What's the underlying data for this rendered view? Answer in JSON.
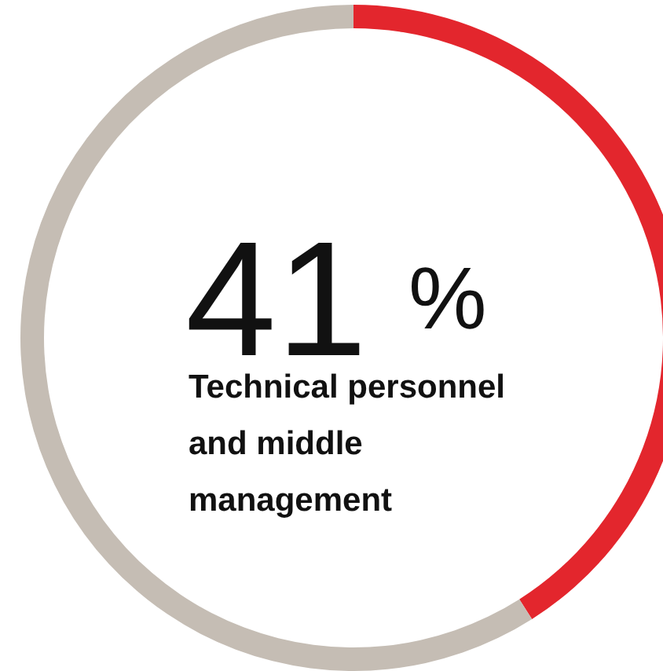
{
  "chart_data": {
    "type": "donut",
    "categories": [
      null,
      null
    ],
    "values": [
      41,
      59
    ],
    "colors": [
      "#e3262d",
      "#c5bdb4"
    ],
    "annotations": [
      "41 %",
      "Technical personnel and middle management"
    ]
  }
}
